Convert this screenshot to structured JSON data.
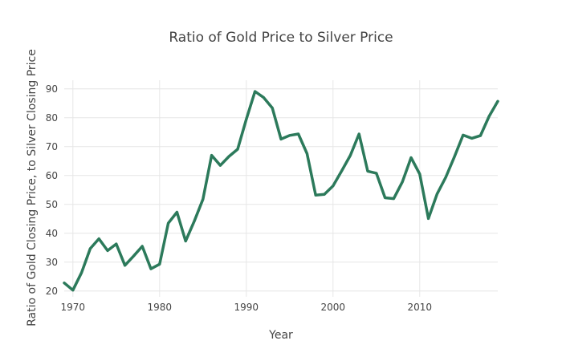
{
  "chart_data": {
    "type": "line",
    "title": "Ratio of Gold Price to Silver Price",
    "xlabel": "Year",
    "ylabel": "Ratio of Gold Closing Price, to Silver Closing Price",
    "xlim": [
      1969,
      2019
    ],
    "ylim": [
      18,
      93
    ],
    "xticks": [
      1970,
      1980,
      1990,
      2000,
      2010
    ],
    "yticks": [
      20,
      30,
      40,
      50,
      60,
      70,
      80,
      90
    ],
    "grid": true,
    "series_color": "#2c7a5b",
    "series": [
      {
        "x": [
          1969,
          1970,
          1971,
          1972,
          1973,
          1974,
          1975,
          1976,
          1977,
          1978,
          1979,
          1980,
          1981,
          1982,
          1983,
          1984,
          1985,
          1986,
          1987,
          1988,
          1989,
          1990,
          1991,
          1992,
          1993,
          1994,
          1995,
          1996,
          1997,
          1998,
          1999,
          2000,
          2001,
          2002,
          2003,
          2004,
          2005,
          2006,
          2007,
          2008,
          2009,
          2010,
          2011,
          2012,
          2013,
          2014,
          2015,
          2016,
          2017,
          2018,
          2019
        ],
        "values": [
          22.8,
          20.3,
          26.4,
          34.7,
          38.1,
          34.0,
          36.3,
          28.9,
          32.1,
          35.5,
          27.7,
          29.3,
          43.5,
          47.3,
          37.3,
          44.2,
          51.8,
          67.0,
          63.5,
          66.6,
          69.1,
          79.5,
          89.1,
          87.0,
          83.4,
          72.6,
          73.9,
          74.4,
          67.6,
          53.2,
          53.5,
          56.4,
          61.6,
          67.0,
          74.4,
          61.5,
          60.8,
          52.3,
          52.0,
          57.8,
          66.2,
          60.5,
          45.1,
          53.6,
          59.4,
          66.5,
          74.0,
          72.9,
          73.8,
          80.5,
          85.7
        ]
      }
    ]
  }
}
